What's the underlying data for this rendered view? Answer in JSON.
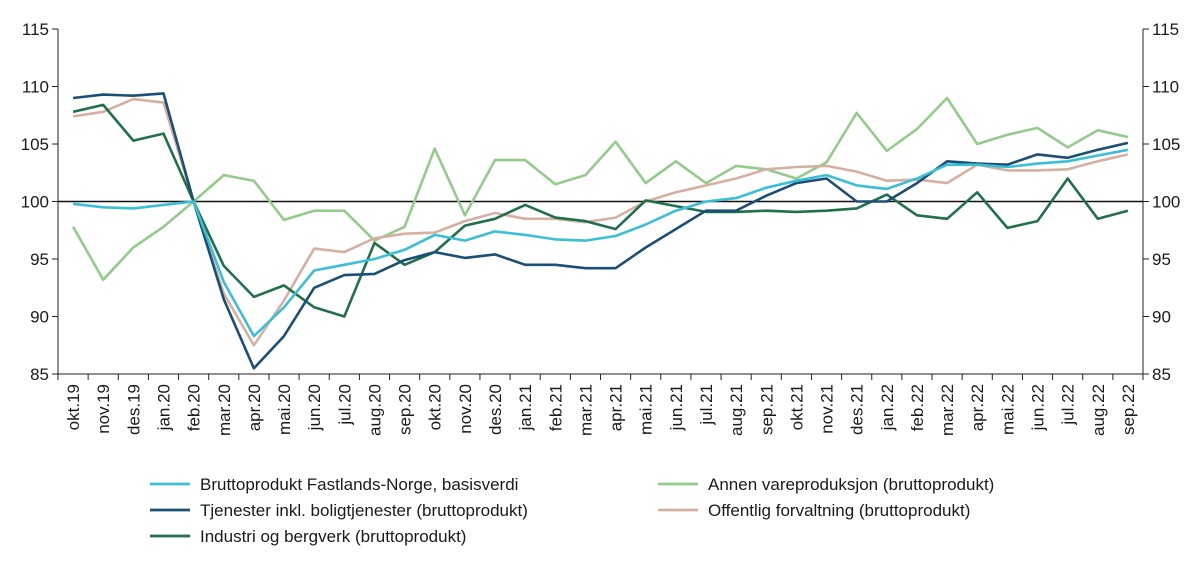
{
  "chart_data": {
    "type": "line",
    "categories": [
      "okt.19",
      "nov.19",
      "des.19",
      "jan.20",
      "feb.20",
      "mar.20",
      "apr.20",
      "mai.20",
      "jun.20",
      "jul.20",
      "aug.20",
      "sep.20",
      "okt.20",
      "nov.20",
      "des.20",
      "jan.21",
      "feb.21",
      "mar.21",
      "apr.21",
      "mai.21",
      "jun.21",
      "jul.21",
      "aug.21",
      "sep.21",
      "okt.21",
      "nov.21",
      "des.21",
      "jan.22",
      "feb.22",
      "mar.22",
      "apr.22",
      "mai.22",
      "jun.22",
      "jul.22",
      "aug.22",
      "sep.22"
    ],
    "ylim": [
      85,
      115
    ],
    "yticks": [
      "85",
      "90",
      "95",
      "100",
      "105",
      "110",
      "115"
    ],
    "reference_line": 100,
    "legend_position": "bottom",
    "series": [
      {
        "name": "Bruttoprodukt Fastlands-Norge, basisverdi",
        "color": "#3bbfd6",
        "values": [
          99.8,
          99.5,
          99.4,
          99.7,
          100,
          93,
          88.3,
          90.8,
          94,
          94.5,
          95,
          95.8,
          97.1,
          96.6,
          97.4,
          97.1,
          96.7,
          96.6,
          97,
          98,
          99.2,
          100,
          100.3,
          101.2,
          101.8,
          102.3,
          101.4,
          101.1,
          102,
          103.2,
          103.2,
          103,
          103.3,
          103.5,
          104,
          104.5
        ]
      },
      {
        "name": "Tjenester inkl. boligtjenester (bruttoprodukt)",
        "color": "#1b4f75",
        "values": [
          109,
          109.3,
          109.2,
          109.4,
          100,
          91.5,
          85.5,
          88.3,
          92.5,
          93.6,
          93.7,
          94.9,
          95.6,
          95.1,
          95.4,
          94.5,
          94.5,
          94.2,
          94.2,
          96,
          97.6,
          99.2,
          99.2,
          100.5,
          101.6,
          102,
          100,
          100,
          101.6,
          103.5,
          103.3,
          103.2,
          104.1,
          103.8,
          104.5,
          105.1
        ]
      },
      {
        "name": "Industri og bergverk (bruttoprodukt)",
        "color": "#20704a",
        "values": [
          107.8,
          108.4,
          105.3,
          105.9,
          100,
          94.4,
          91.7,
          92.7,
          90.8,
          90,
          96.4,
          94.5,
          95.6,
          97.9,
          98.5,
          99.7,
          98.6,
          98.3,
          97.6,
          100.1,
          99.6,
          99.1,
          99.1,
          99.2,
          99.1,
          99.2,
          99.4,
          100.6,
          98.8,
          98.5,
          100.8,
          97.7,
          98.3,
          102,
          98.5,
          99.2
        ]
      },
      {
        "name": "Annen vareproduksjon (bruttoprodukt)",
        "color": "#93cc8a",
        "values": [
          97.8,
          93.2,
          96,
          97.8,
          100,
          102.3,
          101.8,
          98.4,
          99.2,
          99.2,
          96.6,
          97.8,
          104.6,
          98.8,
          103.6,
          103.6,
          101.5,
          102.3,
          105.2,
          101.6,
          103.5,
          101.6,
          103.1,
          102.8,
          102,
          103.4,
          107.7,
          104.4,
          106.3,
          109,
          105,
          105.8,
          106.4,
          104.7,
          106.2,
          105.6
        ]
      },
      {
        "name": "Offentlig forvaltning (bruttoprodukt)",
        "color": "#d5b0a2",
        "values": [
          107.4,
          107.8,
          108.9,
          108.6,
          100,
          92,
          87.5,
          91.4,
          95.9,
          95.6,
          96.8,
          97.2,
          97.3,
          98.3,
          99,
          98.5,
          98.5,
          98.2,
          98.6,
          100,
          100.8,
          101.4,
          102,
          102.8,
          103,
          103.1,
          102.6,
          101.8,
          101.9,
          101.6,
          103.2,
          102.7,
          102.7,
          102.8,
          103.5,
          104.1
        ]
      }
    ]
  }
}
